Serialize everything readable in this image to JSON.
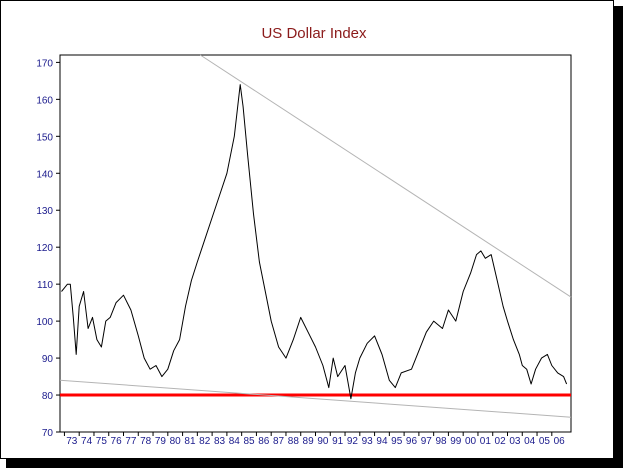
{
  "chart_data": {
    "type": "line",
    "title": "US Dollar Index",
    "xlabel": "",
    "ylabel": "",
    "ylim": [
      70,
      172
    ],
    "xlim": [
      1972.7,
      2007.3
    ],
    "yticks": [
      70,
      80,
      90,
      100,
      110,
      120,
      130,
      140,
      150,
      160,
      170
    ],
    "xtick_labels": [
      "73",
      "74",
      "75",
      "76",
      "77",
      "78",
      "79",
      "80",
      "81",
      "82",
      "83",
      "84",
      "85",
      "86",
      "87",
      "88",
      "89",
      "90",
      "91",
      "92",
      "93",
      "94",
      "95",
      "96",
      "97",
      "98",
      "99",
      "00",
      "01",
      "02",
      "03",
      "04",
      "05",
      "06"
    ],
    "xtick_years": [
      1973,
      1974,
      1975,
      1976,
      1977,
      1978,
      1979,
      1980,
      1981,
      1982,
      1983,
      1984,
      1985,
      1986,
      1987,
      1988,
      1989,
      1990,
      1991,
      1992,
      1993,
      1994,
      1995,
      1996,
      1997,
      1998,
      1999,
      2000,
      2001,
      2002,
      2003,
      2004,
      2005,
      2006
    ],
    "grid": false,
    "legend": "none",
    "series": [
      {
        "color": "#000000",
        "x": [
          1972.8,
          1973.0,
          1973.2,
          1973.4,
          1973.6,
          1973.8,
          1974.0,
          1974.3,
          1974.6,
          1974.9,
          1975.2,
          1975.5,
          1975.8,
          1976.1,
          1976.5,
          1977.0,
          1977.5,
          1978.0,
          1978.4,
          1978.8,
          1979.2,
          1979.6,
          1980.0,
          1980.4,
          1980.8,
          1981.2,
          1981.6,
          1982.0,
          1982.5,
          1983.0,
          1983.5,
          1984.0,
          1984.5,
          1984.9,
          1985.1,
          1985.4,
          1985.8,
          1986.2,
          1986.6,
          1987.0,
          1987.5,
          1988.0,
          1988.5,
          1989.0,
          1989.5,
          1990.0,
          1990.5,
          1990.9,
          1991.2,
          1991.5,
          1992.0,
          1992.4,
          1992.7,
          1993.0,
          1993.5,
          1994.0,
          1994.5,
          1995.0,
          1995.4,
          1995.8,
          1996.5,
          1997.0,
          1997.5,
          1998.0,
          1998.6,
          1999.0,
          1999.5,
          2000.0,
          2000.5,
          2000.9,
          2001.2,
          2001.5,
          2001.9,
          2002.3,
          2002.7,
          2003.0,
          2003.4,
          2003.8,
          2004.0,
          2004.3,
          2004.6,
          2004.9,
          2005.3,
          2005.7,
          2006.0,
          2006.4,
          2006.8,
          2007.0
        ],
        "y": [
          108,
          109,
          110,
          110,
          101,
          91,
          104,
          108,
          98,
          101,
          95,
          93,
          100,
          101,
          105,
          107,
          103,
          96,
          90,
          87,
          88,
          85,
          87,
          92,
          95,
          104,
          111,
          116,
          122,
          128,
          134,
          140,
          150,
          164,
          158,
          145,
          129,
          116,
          108,
          100,
          93,
          90,
          95,
          101,
          97,
          93,
          88,
          82,
          90,
          85,
          88,
          79,
          86,
          90,
          94,
          96,
          91,
          84,
          82,
          86,
          87,
          92,
          97,
          100,
          98,
          103,
          100,
          108,
          113,
          118,
          119,
          117,
          118,
          111,
          104,
          100,
          95,
          91,
          88,
          87,
          83,
          87,
          90,
          91,
          88,
          86,
          85,
          83
        ]
      }
    ],
    "reference_lines": [
      {
        "type": "support",
        "color": "#ff0000",
        "y_start": 80,
        "y_end": 80
      },
      {
        "type": "trend",
        "color": "#b4b4b4",
        "x_start": 1982.2,
        "y_start": 172,
        "x_end": 2007.3,
        "y_end": 106.5
      },
      {
        "type": "trend",
        "color": "#b4b4b4",
        "x_start": 1972.7,
        "y_start": 84,
        "x_end": 2007.3,
        "y_end": 74
      }
    ]
  }
}
